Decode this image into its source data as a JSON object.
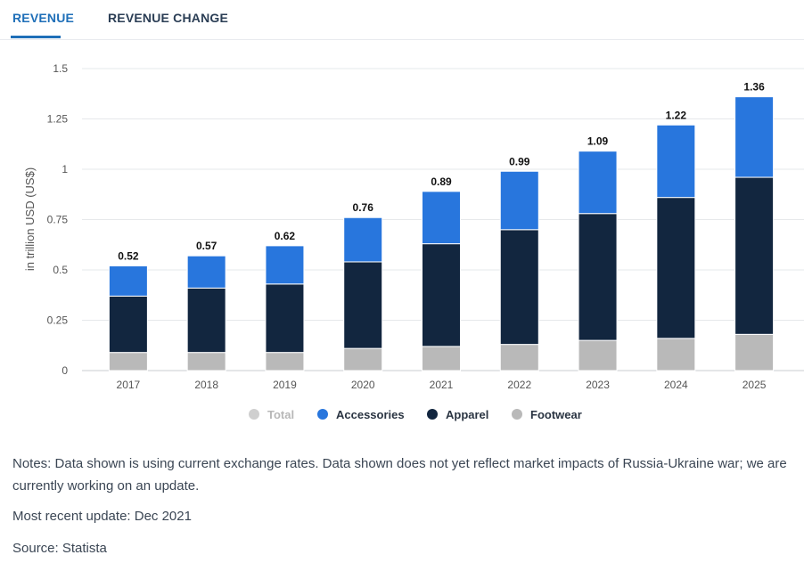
{
  "tabs": [
    {
      "label": "REVENUE",
      "active": true
    },
    {
      "label": "REVENUE CHANGE",
      "active": false
    }
  ],
  "chart_data": {
    "type": "bar",
    "stacked": true,
    "categories": [
      "2017",
      "2018",
      "2019",
      "2020",
      "2021",
      "2022",
      "2023",
      "2024",
      "2025"
    ],
    "series": [
      {
        "name": "Footwear",
        "color": "#b9b9b9",
        "values": [
          0.09,
          0.09,
          0.09,
          0.11,
          0.12,
          0.13,
          0.15,
          0.16,
          0.18
        ]
      },
      {
        "name": "Apparel",
        "color": "#12263f",
        "values": [
          0.28,
          0.32,
          0.34,
          0.43,
          0.51,
          0.57,
          0.63,
          0.7,
          0.78
        ]
      },
      {
        "name": "Accessories",
        "color": "#2876dd",
        "values": [
          0.15,
          0.16,
          0.19,
          0.22,
          0.26,
          0.29,
          0.31,
          0.36,
          0.4
        ]
      }
    ],
    "totals": {
      "name": "Total",
      "values": [
        "0.52",
        "0.57",
        "0.62",
        "0.76",
        "0.89",
        "0.99",
        "1.09",
        "1.22",
        "1.36"
      ],
      "color": "#cfcfcf"
    },
    "ylabel": "in trillion USD (US$)",
    "ylim": [
      0,
      1.5
    ],
    "yticks": [
      "0",
      "0.25",
      "0.5",
      "0.75",
      "1",
      "1.25",
      "1.5"
    ],
    "grid": true,
    "legend": {
      "placement": "bottom",
      "order": [
        "Total",
        "Accessories",
        "Apparel",
        "Footwear"
      ]
    }
  },
  "notes": "Notes: Data shown is using current exchange rates. Data shown does not yet reflect market impacts of Russia-Ukraine war; we are currently working on an update.",
  "update": "Most recent update: Dec 2021",
  "source": "Source: Statista"
}
